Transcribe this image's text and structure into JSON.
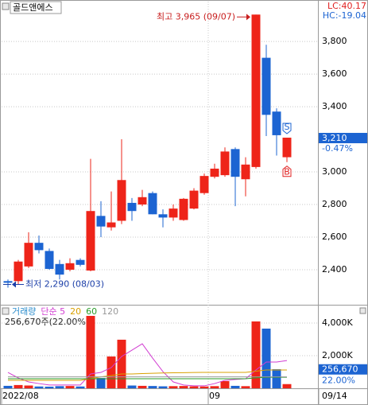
{
  "chart_data": [
    {
      "type": "candlestick",
      "title": "골드앤에스",
      "categories": [
        "2022/08",
        null,
        null,
        null,
        null,
        null,
        null,
        null,
        null,
        null,
        null,
        null,
        null,
        null,
        null,
        null,
        null,
        null,
        null,
        null,
        "09",
        null,
        null,
        null,
        null,
        null,
        null,
        "09/14"
      ],
      "open": [
        2330,
        2330,
        2420,
        2565,
        2515,
        2435,
        2400,
        2460,
        2395,
        2730,
        2660,
        2700,
        2810,
        2800,
        2870,
        2740,
        2720,
        2705,
        2775,
        2870,
        2970,
        2980,
        3140,
        2955,
        3030,
        3700,
        3370,
        3090
      ],
      "high": [
        2340,
        2460,
        2630,
        2610,
        2530,
        2460,
        2470,
        2470,
        3080,
        2820,
        2880,
        3200,
        2840,
        2890,
        2880,
        2770,
        2800,
        2840,
        2900,
        2990,
        3050,
        3150,
        3150,
        3090,
        3965,
        3780,
        3390,
        3210
      ],
      "low": [
        2290,
        2310,
        2410,
        2500,
        2400,
        2340,
        2390,
        2420,
        2390,
        2600,
        2640,
        2680,
        2700,
        2790,
        2740,
        2660,
        2700,
        2700,
        2770,
        2860,
        2960,
        2970,
        2790,
        2850,
        3020,
        3220,
        3100,
        3060
      ],
      "close": [
        2320,
        2450,
        2565,
        2520,
        2405,
        2370,
        2440,
        2430,
        2760,
        2665,
        2690,
        2950,
        2760,
        2845,
        2740,
        2720,
        2775,
        2835,
        2885,
        2975,
        3020,
        3125,
        2970,
        3045,
        3965,
        3350,
        3225,
        3210
      ],
      "up_color": "#ee2419",
      "down_color": "#1c64d2",
      "ylim": [
        2190,
        4030
      ],
      "yticks": [
        {
          "value": 2400,
          "label": "2,400"
        },
        {
          "value": 2600,
          "label": "2,600"
        },
        {
          "value": 2800,
          "label": "2,800"
        },
        {
          "value": 3000,
          "label": "3,000"
        },
        {
          "value": 3400,
          "label": "3,400"
        },
        {
          "value": 3600,
          "label": "3,600"
        },
        {
          "value": 3800,
          "label": "3,800"
        }
      ],
      "grid": true,
      "high_annotation": "최고 3,965 (09/07)",
      "low_annotation": "최저 2,290 (08/03)",
      "lc": "LC:40.17",
      "hc": "HC:-19.04",
      "last_label": "3,210",
      "change_label": "-0.47%",
      "sell_signal": "S",
      "buy_signal": "B"
    },
    {
      "type": "bar",
      "series": [
        {
          "name": "거래량",
          "color": "#2a8ccc",
          "values": [
            150,
            200,
            170,
            110,
            100,
            130,
            140,
            110,
            4440,
            630,
            1950,
            2980,
            170,
            150,
            140,
            120,
            130,
            140,
            120,
            110,
            130,
            440,
            150,
            130,
            4100,
            3660,
            1170,
            256.67
          ]
        },
        {
          "name": "단순 5",
          "color": "#d23ed2",
          "values": [
            975,
            635,
            390,
            290,
            200,
            200,
            200,
            200,
            880,
            975,
            1270,
            1950,
            2340,
            2730,
            1850,
            1020,
            390,
            200,
            150,
            150,
            290,
            490,
            540,
            585,
            1120,
            1610,
            1610,
            1700
          ]
        },
        {
          "name": "20",
          "color": "#d9a000",
          "values": [
            490,
            490,
            490,
            490,
            490,
            490,
            490,
            490,
            600,
            700,
            780,
            880,
            880,
            900,
            920,
            940,
            950,
            960,
            970,
            975,
            975,
            975,
            975,
            975,
            1050,
            1120,
            1120,
            1120
          ]
        },
        {
          "name": "60",
          "color": "#2a9d2a",
          "values": [
            585,
            585,
            585,
            585,
            585,
            585,
            585,
            585,
            585,
            585,
            585,
            585,
            585,
            585,
            585,
            585,
            585,
            585,
            585,
            585,
            585,
            585,
            585,
            585,
            640,
            680,
            680,
            680
          ]
        },
        {
          "name": "120",
          "color": "#999999",
          "values": [
            700,
            700,
            700,
            700,
            700,
            700,
            700,
            700,
            700,
            700,
            700,
            700,
            700,
            700,
            700,
            700,
            700,
            700,
            700,
            700,
            700,
            700,
            700,
            700,
            700,
            700,
            700,
            700
          ]
        }
      ],
      "ylim": [
        0,
        4880
      ],
      "yticks": [
        {
          "value": 2000,
          "label": "2,000K"
        },
        {
          "value": 4000,
          "label": "4,000K"
        }
      ],
      "volume_note": "256,670주(22.00%)",
      "last_label": "256,670",
      "ratio_label": "22.00%"
    }
  ]
}
